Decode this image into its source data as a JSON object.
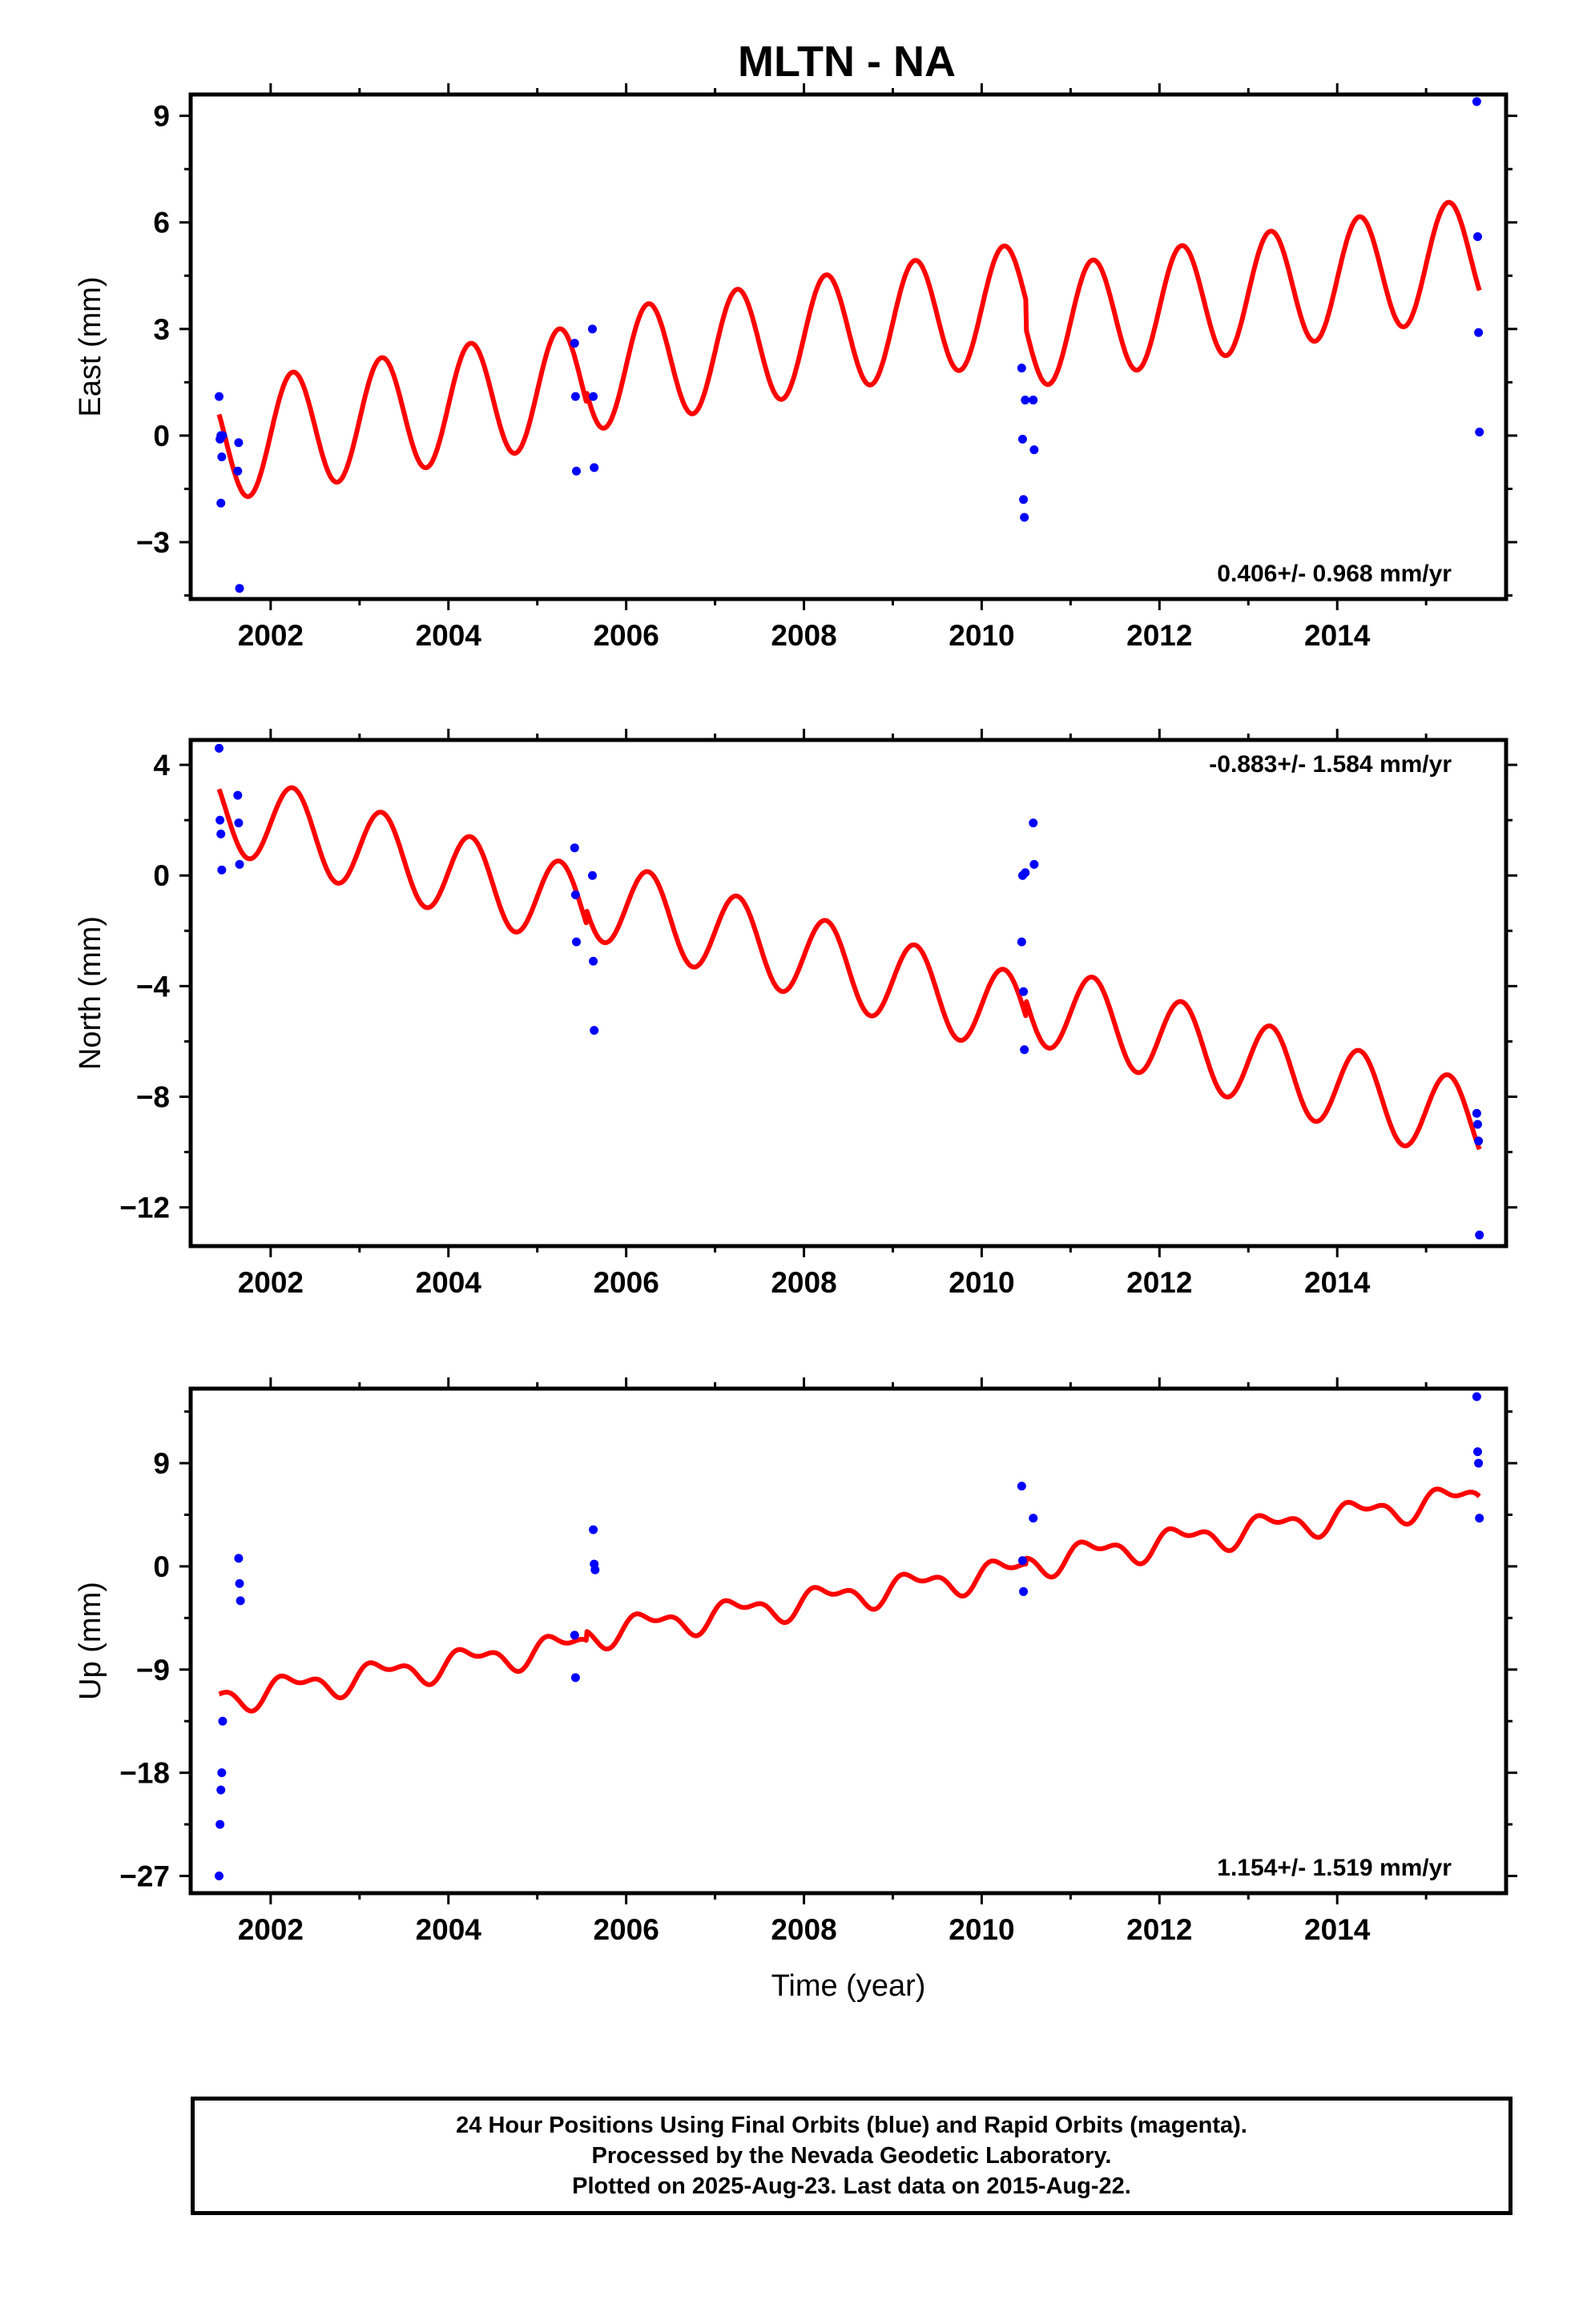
{
  "title": "MLTN - NA",
  "footer": {
    "line1": "24 Hour Positions Using Final Orbits (blue) and Rapid Orbits (magenta).",
    "line2": "Processed by the Nevada Geodetic Laboratory.",
    "line3": "Plotted on 2025-Aug-23. Last data on 2015-Aug-22."
  },
  "colors": {
    "observed": "#0000ff",
    "model": "#ff0000",
    "axes": "#000000"
  },
  "chart_data": [
    {
      "type": "scatter",
      "panel": "east",
      "ylabel": "East (mm)",
      "xlabel": "",
      "xlim": [
        2001.1,
        2015.9
      ],
      "ylim": [
        -4.6,
        9.6
      ],
      "xticks": [
        2002,
        2004,
        2006,
        2008,
        2010,
        2012,
        2014
      ],
      "yticks": [
        -3,
        0,
        3,
        6,
        9
      ],
      "ytick_labels": [
        "−3",
        "0",
        "3",
        "6",
        "9"
      ],
      "rate_label": "0.406+/- 0.968 mm/yr",
      "rate_label_position": "bottom-right",
      "points": {
        "x": [
          2001.42,
          2001.43,
          2001.44,
          2001.44,
          2001.45,
          2001.46,
          2001.63,
          2001.64,
          2001.65,
          2005.42,
          2005.43,
          2005.44,
          2005.62,
          2005.63,
          2005.64,
          2010.45,
          2010.46,
          2010.47,
          2010.48,
          2010.49,
          2010.58,
          2010.59,
          2015.57,
          2015.58,
          2015.59,
          2015.6
        ],
        "y": [
          1.1,
          -0.1,
          0.0,
          -1.9,
          -0.6,
          0.0,
          -1.0,
          -0.2,
          -4.3,
          2.6,
          1.1,
          -1.0,
          3.0,
          1.1,
          -0.9,
          1.9,
          -0.1,
          -1.8,
          -2.3,
          1.0,
          1.0,
          -0.4,
          9.4,
          5.6,
          2.9,
          0.1
        ]
      },
      "model": {
        "start": 2001.42,
        "end": 2015.6,
        "offset": -0.2,
        "trend": 0.406,
        "annual_amplitude": 1.65,
        "semiannual_amplitude": 0.0,
        "jumps": [
          {
            "t": 2005.55,
            "dy": 0.3
          },
          {
            "t": 2010.5,
            "dy": -0.8
          }
        ]
      }
    },
    {
      "type": "scatter",
      "panel": "north",
      "ylabel": "North (mm)",
      "xlabel": "",
      "xlim": [
        2001.1,
        2015.9
      ],
      "ylim": [
        -13.4,
        4.9
      ],
      "xticks": [
        2002,
        2004,
        2006,
        2008,
        2010,
        2012,
        2014
      ],
      "yticks": [
        -12,
        -8,
        -4,
        0,
        4
      ],
      "ytick_labels": [
        "−12",
        "−8",
        "−4",
        "0",
        "4"
      ],
      "rate_label": "-0.883+/- 1.584 mm/yr",
      "rate_label_position": "top-right",
      "points": {
        "x": [
          2001.42,
          2001.43,
          2001.44,
          2001.45,
          2001.63,
          2001.64,
          2001.65,
          2005.42,
          2005.43,
          2005.44,
          2005.62,
          2005.63,
          2005.64,
          2010.45,
          2010.46,
          2010.47,
          2010.48,
          2010.49,
          2010.58,
          2010.59,
          2015.57,
          2015.58,
          2015.59,
          2015.6
        ],
        "y": [
          4.6,
          2.0,
          1.5,
          0.2,
          2.9,
          1.9,
          0.4,
          1.0,
          -0.7,
          -2.4,
          0.0,
          -3.1,
          -5.6,
          -2.4,
          0.0,
          -4.2,
          -6.3,
          0.1,
          1.9,
          0.4,
          -8.6,
          -9.0,
          -9.6,
          -13.0
        ]
      },
      "model": {
        "start": 2001.42,
        "end": 2015.6,
        "offset": 2.4,
        "trend": -0.883,
        "annual_amplitude": 1.5,
        "semiannual_amplitude": 0.0,
        "jumps": [
          {
            "t": 2005.55,
            "dy": 0.5
          },
          {
            "t": 2010.5,
            "dy": 0.6
          }
        ]
      }
    },
    {
      "type": "scatter",
      "panel": "up",
      "ylabel": "Up (mm)",
      "xlabel": "Time (year)",
      "xlim": [
        2001.1,
        2015.9
      ],
      "ylim": [
        -28.5,
        15.5
      ],
      "xticks": [
        2002,
        2004,
        2006,
        2008,
        2010,
        2012,
        2014
      ],
      "yticks": [
        -27,
        -18,
        -9,
        0,
        9
      ],
      "ytick_labels": [
        "−27",
        "−18",
        "−9",
        "0",
        "9"
      ],
      "rate_label": "1.154+/- 1.519 mm/yr",
      "rate_label_position": "bottom-right",
      "points": {
        "x": [
          2001.42,
          2001.43,
          2001.44,
          2001.45,
          2001.46,
          2001.64,
          2001.65,
          2001.66,
          2005.42,
          2005.43,
          2005.63,
          2005.64,
          2005.65,
          2010.45,
          2010.46,
          2010.47,
          2010.58,
          2015.57,
          2015.58,
          2015.59,
          2015.6
        ],
        "y": [
          -27.0,
          -22.5,
          -19.5,
          -18.0,
          -13.5,
          0.7,
          -1.5,
          -3.0,
          -6.0,
          -9.7,
          3.2,
          0.2,
          -0.3,
          7.0,
          0.5,
          -2.2,
          4.2,
          14.8,
          10.0,
          9.0,
          4.2
        ]
      },
      "model": {
        "start": 2001.42,
        "end": 2015.6,
        "offset": -11.5,
        "trend": 1.154,
        "annual_amplitude": 1.0,
        "semiannual_amplitude": 0.6,
        "jumps": [
          {
            "t": 2005.55,
            "dy": 0.8
          },
          {
            "t": 2010.5,
            "dy": 0.5
          }
        ]
      }
    }
  ]
}
